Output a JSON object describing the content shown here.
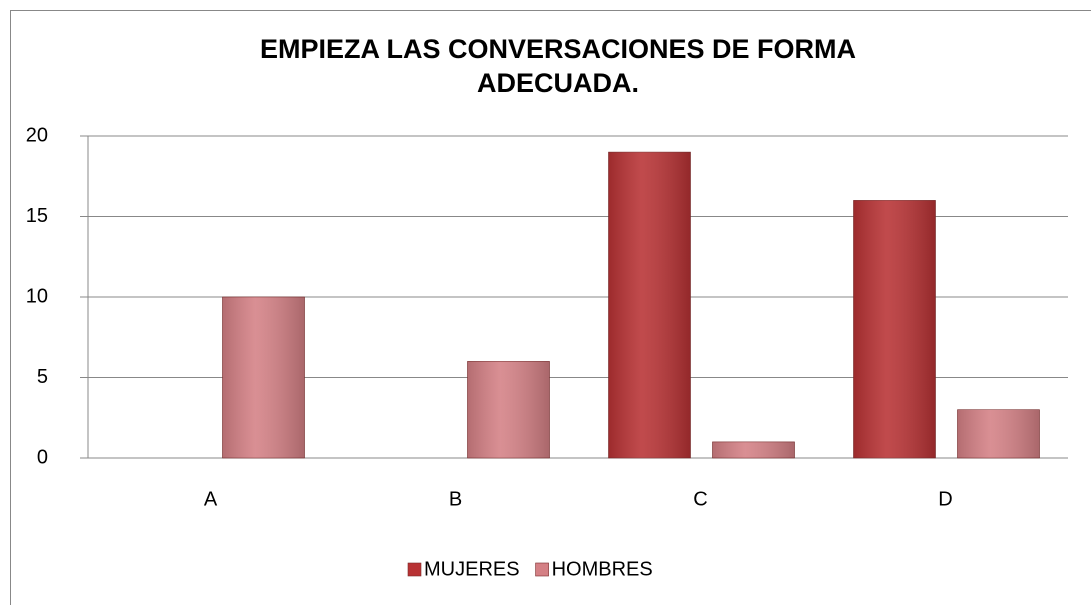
{
  "chart_data": {
    "type": "bar",
    "title": "EMPIEZA LAS CONVERSACIONES  DE FORMA ADECUADA.",
    "categories": [
      "A",
      "B",
      "C",
      "D"
    ],
    "series": [
      {
        "name": "MUJERES",
        "color": "#b83234",
        "values": [
          0,
          0,
          19,
          16
        ]
      },
      {
        "name": "HOMBRES",
        "color": "#d48085",
        "values": [
          10,
          6,
          1,
          3
        ]
      }
    ],
    "ylim": [
      0,
      20
    ],
    "yticks": [
      0,
      5,
      10,
      15,
      20
    ],
    "grid": true,
    "legend": "bottom"
  }
}
